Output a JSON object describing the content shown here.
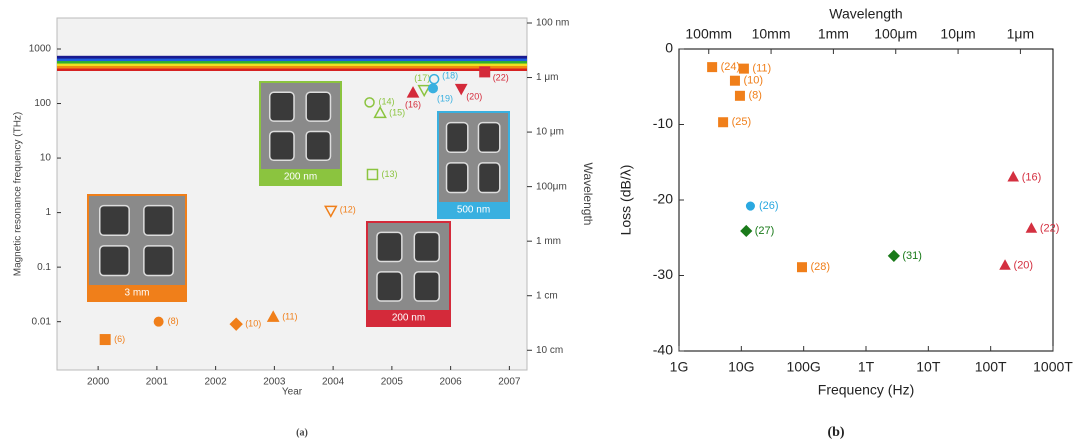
{
  "chart_data": [
    {
      "type": "scatter",
      "panel_label": "(a)",
      "xlabel": "Year",
      "ylabel": "Magnetic resonance frequency (THz)",
      "y2label": "Wavelength",
      "xlim": [
        1999.3,
        2007.3
      ],
      "xticks": [
        2000,
        2001,
        2002,
        2003,
        2004,
        2005,
        2006,
        2007
      ],
      "log_y": true,
      "ylim": [
        0.0013,
        3700
      ],
      "yticks": [
        0.01,
        0.1,
        1,
        10,
        100,
        1000
      ],
      "y2lim": [
        8.1e-08,
        0.23
      ],
      "y2ticks": [
        {
          "value": 1e-07,
          "label": "100 nm"
        },
        {
          "value": 1e-06,
          "label": "1 μm"
        },
        {
          "value": 1e-05,
          "label": "10 μm"
        },
        {
          "value": 0.0001,
          "label": "100μm"
        },
        {
          "value": 0.001,
          "label": "1 mm"
        },
        {
          "value": 0.01,
          "label": "1 cm"
        },
        {
          "value": 0.1,
          "label": "10 cm"
        }
      ],
      "spectrum": {
        "range": [
          400,
          750
        ],
        "colors": [
          "#d62020",
          "#f08a10",
          "#f0e020",
          "#30b030",
          "#2060e0",
          "#1a1a90"
        ]
      },
      "points": [
        {
          "x": 2000.12,
          "y": 0.0047,
          "label": "(6)",
          "marker": "square",
          "color": "#f07f1a",
          "filled": true
        },
        {
          "x": 2001.03,
          "y": 0.01,
          "label": "(8)",
          "marker": "circle",
          "color": "#f07f1a",
          "filled": true
        },
        {
          "x": 2002.35,
          "y": 0.009,
          "label": "(10)",
          "marker": "diamond",
          "color": "#f07f1a",
          "filled": true
        },
        {
          "x": 2002.98,
          "y": 0.012,
          "label": "(11)",
          "marker": "triangle",
          "color": "#f07f1a",
          "filled": true
        },
        {
          "x": 2003.96,
          "y": 1.1,
          "label": "(12)",
          "marker": "triangle-down",
          "color": "#f07f1a",
          "filled": false
        },
        {
          "x": 2004.67,
          "y": 5,
          "label": "(13)",
          "marker": "square",
          "color": "#8bc43f",
          "filled": false
        },
        {
          "x": 2004.62,
          "y": 105,
          "label": "(14)",
          "marker": "circle",
          "color": "#8bc43f",
          "filled": false
        },
        {
          "x": 2004.8,
          "y": 66,
          "label": "(15)",
          "marker": "triangle",
          "color": "#8bc43f",
          "filled": false
        },
        {
          "x": 2005.36,
          "y": 155,
          "label": "(16)",
          "marker": "triangle",
          "color": "#d42a3a",
          "filled": true
        },
        {
          "x": 2005.55,
          "y": 180,
          "label": "(17)",
          "marker": "triangle-down",
          "color": "#8bc43f",
          "filled": false
        },
        {
          "x": 2005.72,
          "y": 280,
          "label": "(18)",
          "marker": "circle",
          "color": "#39b0e0",
          "filled": false
        },
        {
          "x": 2005.7,
          "y": 190,
          "label": "(19)",
          "marker": "circle",
          "color": "#39b0e0",
          "filled": true
        },
        {
          "x": 2006.18,
          "y": 190,
          "label": "(20)",
          "marker": "triangle-down",
          "color": "#d42a3a",
          "filled": true
        },
        {
          "x": 2006.58,
          "y": 380,
          "label": "(22)",
          "marker": "square",
          "color": "#d42a3a",
          "filled": true
        }
      ],
      "insets": [
        {
          "caption": "3 mm",
          "color": "#f07f1a"
        },
        {
          "caption": "200 nm",
          "color": "#8bc43f"
        },
        {
          "caption": "500 nm",
          "color": "#39b0e0"
        },
        {
          "caption": "200 nm",
          "color": "#d42a3a"
        }
      ]
    },
    {
      "type": "scatter",
      "panel_label": "(b)",
      "xlabel": "Frequency (Hz)",
      "ylabel": "Loss (dB/λ)",
      "x2label": "Wavelength",
      "log_x": true,
      "xlim": [
        1000000000.0,
        1000000000000000.0
      ],
      "xticks": [
        {
          "value": 1000000000.0,
          "label": "1G"
        },
        {
          "value": 10000000000.0,
          "label": "10G"
        },
        {
          "value": 100000000000.0,
          "label": "100G"
        },
        {
          "value": 1000000000000.0,
          "label": "1T"
        },
        {
          "value": 10000000000000.0,
          "label": "10T"
        },
        {
          "value": 100000000000000.0,
          "label": "100T"
        },
        {
          "value": 1000000000000000.0,
          "label": "1000T"
        }
      ],
      "x2lim": [
        0.3,
        3e-07
      ],
      "x2ticks": [
        {
          "value": 0.1,
          "label": "100mm"
        },
        {
          "value": 0.01,
          "label": "10mm"
        },
        {
          "value": 0.001,
          "label": "1mm"
        },
        {
          "value": 0.0001,
          "label": "100μm"
        },
        {
          "value": 1e-05,
          "label": "10μm"
        },
        {
          "value": 1e-06,
          "label": "1μm"
        }
      ],
      "ylim": [
        -40,
        0
      ],
      "yticks": [
        -40,
        -30,
        -20,
        -10,
        0
      ],
      "points": [
        {
          "x": 3400000000.0,
          "y": -2.4,
          "label": "(24)",
          "marker": "square",
          "color": "#f07f1a",
          "filled": true
        },
        {
          "x": 11000000000.0,
          "y": -2.6,
          "label": "(11)",
          "marker": "square",
          "color": "#f07f1a",
          "filled": true
        },
        {
          "x": 7900000000.0,
          "y": -4.2,
          "label": "(10)",
          "marker": "square",
          "color": "#f07f1a",
          "filled": true
        },
        {
          "x": 9500000000.0,
          "y": -6.2,
          "label": "(8)",
          "marker": "square",
          "color": "#f07f1a",
          "filled": true
        },
        {
          "x": 5100000000.0,
          "y": -9.7,
          "label": "(25)",
          "marker": "square",
          "color": "#f07f1a",
          "filled": true
        },
        {
          "x": 14000000000.0,
          "y": -20.8,
          "label": "(26)",
          "marker": "circle",
          "color": "#2aa8e0",
          "filled": true
        },
        {
          "x": 12000000000.0,
          "y": -24.1,
          "label": "(27)",
          "marker": "diamond",
          "color": "#1a7a1a",
          "filled": true
        },
        {
          "x": 94000000000.0,
          "y": -28.9,
          "label": "(28)",
          "marker": "square",
          "color": "#f07f1a",
          "filled": true
        },
        {
          "x": 2800000000000.0,
          "y": -27.4,
          "label": "(31)",
          "marker": "diamond",
          "color": "#1a7a1a",
          "filled": true
        },
        {
          "x": 230000000000000.0,
          "y": -17,
          "label": "(16)",
          "marker": "triangle",
          "color": "#d43040",
          "filled": true
        },
        {
          "x": 450000000000000.0,
          "y": -23.8,
          "label": "(22)",
          "marker": "triangle",
          "color": "#d43040",
          "filled": true
        },
        {
          "x": 170000000000000.0,
          "y": -28.7,
          "label": "(20)",
          "marker": "triangle",
          "color": "#d43040",
          "filled": true
        }
      ]
    }
  ]
}
